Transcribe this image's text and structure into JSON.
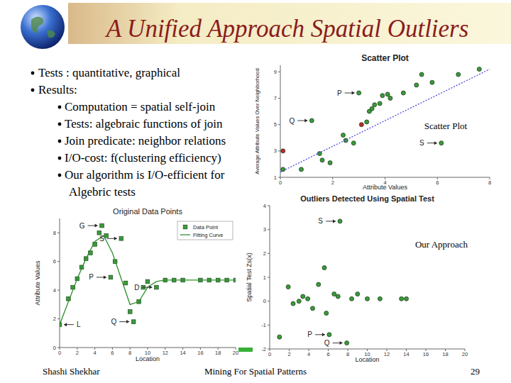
{
  "slide": {
    "title": "A Unified Approach Spatial Outliers",
    "bullets": [
      {
        "text": "Tests : quantitative, graphical",
        "items": []
      },
      {
        "text": "Results:",
        "items": [
          "Computation = spatial self-join",
          "Tests: algebraic functions of join",
          "Join predicate: neighbor relations",
          "I/O-cost: f(clustering efficiency)",
          "Our algorithm is I/O-efficient for Algebric tests"
        ]
      }
    ],
    "labels": [
      "Scatter Plot",
      "Our Approach"
    ],
    "footer": {
      "author": "Shashi Shekhar",
      "course": "Mining For Spatial Patterns",
      "page": "29"
    }
  },
  "chart_data": [
    {
      "type": "scatter",
      "title": "Scatter Plot",
      "x_label": "Attribute Values",
      "y_label": "Average Attribute Values Over Neighborhood",
      "xlim": [
        0,
        8
      ],
      "ylim": [
        1,
        9.5
      ],
      "xticks": [
        0,
        2,
        4,
        6,
        8
      ],
      "yticks": [
        1,
        3,
        5,
        7,
        9
      ],
      "series": [
        {
          "type": "scatter",
          "color": "#3c9a3c",
          "marker": "circle",
          "x": [
            0.1,
            0.8,
            1.2,
            1.5,
            1.6,
            1.9,
            2.4,
            2.5,
            2.8,
            3.0,
            3.3,
            3.4,
            3.5,
            3.6,
            3.8,
            3.9,
            4.1,
            4.2,
            4.7,
            5.2,
            5.4,
            5.8,
            6.15,
            6.8,
            7.6
          ],
          "values": [
            1.6,
            1.6,
            5.3,
            2.8,
            2.3,
            2.1,
            4.2,
            3.8,
            3.6,
            7.4,
            5.2,
            6.0,
            6.2,
            6.5,
            6.6,
            7.2,
            7.3,
            7.0,
            7.4,
            8.0,
            8.8,
            8.2,
            3.6,
            8.8,
            9.2
          ]
        },
        {
          "type": "scatter",
          "color": "#c0282a",
          "marker": "circle",
          "x": [
            0.1,
            3.1
          ],
          "values": [
            3.0,
            5.0
          ]
        },
        {
          "type": "line",
          "color": "#4a4ae0",
          "line_style": "dotted",
          "x": [
            0,
            8
          ],
          "values": [
            1.4,
            9.2
          ]
        }
      ],
      "annotations": [
        {
          "text": "P",
          "x": 3.0,
          "y": 7.4
        },
        {
          "text": "Q",
          "x": 1.2,
          "y": 5.3
        },
        {
          "text": "S",
          "x": 6.15,
          "y": 3.6
        }
      ]
    },
    {
      "type": "line",
      "title": "Original Data Points",
      "x_label": "Location",
      "y_label": "Attribute Values",
      "xlim": [
        0,
        20
      ],
      "ylim": [
        0,
        9
      ],
      "xticks": [
        0,
        2,
        4,
        6,
        8,
        10,
        12,
        14,
        16,
        18,
        20
      ],
      "yticks": [
        0,
        2,
        4,
        6,
        8
      ],
      "legend": "upper right",
      "series": [
        {
          "name": "Data Point",
          "type": "scatter",
          "color": "#3c9a3c",
          "marker": "square",
          "x": [
            0,
            1,
            1.5,
            2,
            2.5,
            3,
            3.5,
            4,
            4.5,
            4.8,
            5.3,
            5.8,
            6.3,
            7,
            7.5,
            8,
            8.4,
            9,
            9.5,
            10,
            11,
            12,
            13,
            14,
            16,
            17,
            18,
            19,
            20
          ],
          "values": [
            1.6,
            3.4,
            4.2,
            4.8,
            5.6,
            6.2,
            6.6,
            7.2,
            8.0,
            8.5,
            7.8,
            4.9,
            6.0,
            7.6,
            4.5,
            2.5,
            1.8,
            3.2,
            4.2,
            4.6,
            4.2,
            4.7,
            4.7,
            4.7,
            4.7,
            4.7,
            4.7,
            4.7,
            4.7
          ]
        },
        {
          "name": "Fitting Curve",
          "type": "line",
          "color": "#2f8f2f",
          "line_style": "solid",
          "x": [
            0,
            1,
            2,
            3,
            4,
            5,
            6,
            7,
            8,
            9,
            10,
            11,
            12,
            14,
            16,
            18,
            20
          ],
          "values": [
            1.6,
            3.2,
            4.8,
            6.2,
            7.4,
            7.8,
            6.6,
            4.8,
            3.0,
            3.2,
            4.2,
            4.6,
            4.7,
            4.7,
            4.7,
            4.7,
            4.7
          ]
        }
      ],
      "annotations": [
        {
          "text": "G",
          "x": 4.8,
          "y": 8.5
        },
        {
          "text": "S",
          "x": 7,
          "y": 7.6
        },
        {
          "text": "P",
          "x": 5.8,
          "y": 4.9
        },
        {
          "text": "Q",
          "x": 8.4,
          "y": 1.8
        },
        {
          "text": "D",
          "x": 11,
          "y": 4.2
        },
        {
          "text": "L",
          "x": 0,
          "y": 1.6
        }
      ]
    },
    {
      "type": "scatter",
      "title": "Outliers Detected Using Spatial Test",
      "x_label": "Location",
      "y_label": "Spatial Test Zs(x)",
      "xlim": [
        0,
        20
      ],
      "ylim": [
        -2,
        4
      ],
      "xticks": [
        0,
        2,
        4,
        6,
        8,
        10,
        12,
        14,
        16,
        18,
        20
      ],
      "yticks": [
        -2,
        -1,
        0,
        1,
        2,
        3,
        4
      ],
      "series": [
        {
          "type": "scatter",
          "color": "#3c9a3c",
          "marker": "circle",
          "x": [
            1.0,
            1.9,
            2.4,
            3.0,
            3.4,
            3.9,
            4.4,
            5.0,
            5.6,
            5.8,
            6.1,
            6.6,
            7.0,
            7.2,
            7.9,
            8.4,
            9.0,
            10.0,
            11.3,
            13.5,
            14.0
          ],
          "values": [
            -1.5,
            0.6,
            -0.1,
            0.0,
            0.2,
            0.1,
            -0.3,
            0.7,
            1.4,
            -0.5,
            -1.4,
            0.3,
            0.2,
            3.35,
            -1.75,
            0.1,
            0.3,
            0.1,
            0.1,
            0.1,
            0.1
          ]
        }
      ],
      "annotations": [
        {
          "text": "S",
          "x": 7.2,
          "y": 3.35
        },
        {
          "text": "P",
          "x": 6.1,
          "y": -1.4
        },
        {
          "text": "Q",
          "x": 7.9,
          "y": -1.75
        }
      ]
    }
  ]
}
